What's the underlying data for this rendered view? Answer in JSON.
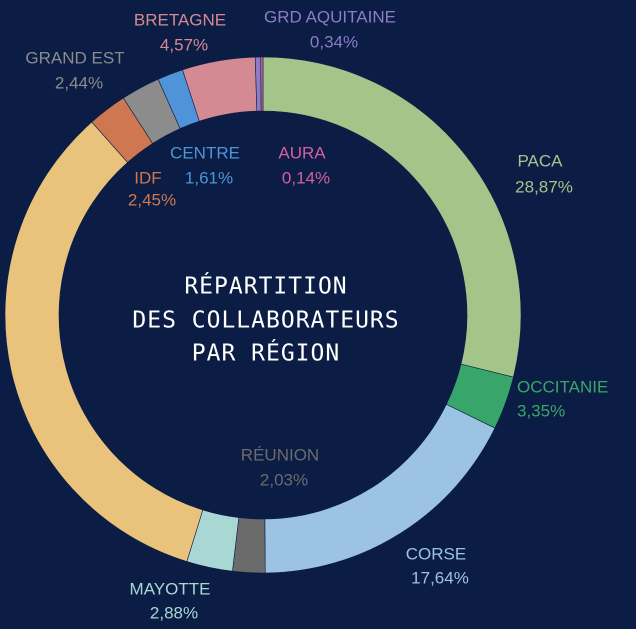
{
  "chart_data": {
    "type": "donut",
    "title": [
      "RÉPARTITION",
      "DES COLLABORATEURS",
      "PAR RÉGION"
    ],
    "categories": [
      "PACA",
      "OCCITANIE",
      "CORSE",
      "RÉUNION",
      "MAYOTTE",
      null,
      "IDF",
      "GRAND EST",
      "CENTRE",
      "BRETAGNE",
      "GRD AQUITAINE",
      "AURA"
    ],
    "values": [
      28.87,
      3.35,
      17.64,
      2.03,
      2.88,
      33.68,
      2.45,
      2.44,
      1.61,
      4.57,
      0.34,
      0.14
    ],
    "value_labels": [
      "28,87%",
      "3,35%",
      "17,64%",
      "2,03%",
      "2,88%",
      null,
      "2,45%",
      "2,44%",
      "1,61%",
      "4,57%",
      "0,34%",
      "0,14%"
    ],
    "colors": [
      "#a4c58a",
      "#38a66a",
      "#9dc3e2",
      "#6b6b6b",
      "#a8d7d4",
      "#e9c27c",
      "#cf7750",
      "#8c8c8c",
      "#4f94d8",
      "#d48a93",
      "#8c7cc4",
      "#d45fa0"
    ]
  }
}
